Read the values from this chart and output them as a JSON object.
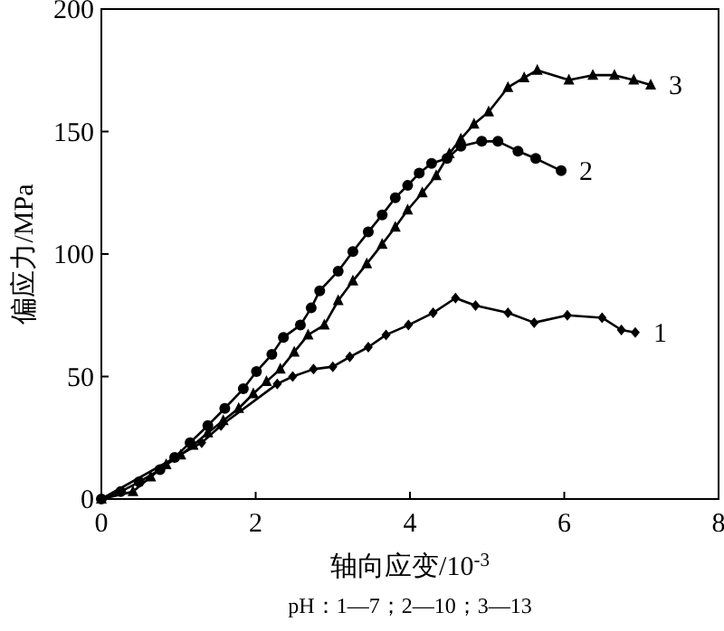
{
  "chart_data": {
    "type": "line",
    "xlabel": "轴向应变/10$^{-3}$",
    "ylabel": "偏应力/MPa",
    "annotations": [
      "pH：1—7；2—10；3—13"
    ],
    "xlim": [
      0,
      8
    ],
    "xticks": [
      0,
      2,
      4,
      6,
      8
    ],
    "ylim": [
      0,
      200
    ],
    "yticks": [
      0,
      50,
      100,
      150,
      200
    ],
    "grid": false,
    "legend": false,
    "line_style": "solid",
    "series": [
      {
        "name": "1",
        "color": "#000000",
        "marker": "diamond",
        "x": [
          0,
          1.3,
          1.55,
          2.28,
          2.48,
          2.75,
          3.0,
          3.22,
          3.46,
          3.69,
          3.98,
          4.3,
          4.59,
          4.85,
          5.27,
          5.61,
          6.04,
          6.49,
          6.74,
          6.92
        ],
        "values": [
          0,
          23,
          30,
          47,
          50,
          53,
          54,
          58,
          62,
          67,
          71,
          76,
          82,
          79,
          76,
          72,
          75,
          74,
          69,
          68
        ]
      },
      {
        "name": "2",
        "color": "#000000",
        "marker": "circle",
        "x": [
          0,
          0.25,
          0.49,
          0.76,
          0.95,
          1.15,
          1.38,
          1.6,
          1.84,
          2.01,
          2.21,
          2.36,
          2.58,
          2.72,
          2.83,
          3.07,
          3.26,
          3.46,
          3.64,
          3.81,
          3.97,
          4.12,
          4.28,
          4.48,
          4.66,
          4.93,
          5.14,
          5.4,
          5.63,
          5.96
        ],
        "values": [
          0,
          3,
          7,
          12,
          17,
          23,
          30,
          37,
          45,
          52,
          59,
          66,
          71,
          78,
          85,
          93,
          101,
          109,
          116,
          123,
          128,
          133,
          137,
          139,
          144,
          146,
          146,
          142,
          139,
          134
        ]
      },
      {
        "name": "3",
        "color": "#000000",
        "marker": "triangle",
        "x": [
          0,
          0.41,
          0.64,
          0.84,
          1.03,
          1.19,
          1.38,
          1.58,
          1.78,
          1.97,
          2.14,
          2.32,
          2.5,
          2.68,
          2.89,
          3.07,
          3.26,
          3.44,
          3.64,
          3.81,
          3.97,
          4.16,
          4.34,
          4.51,
          4.66,
          4.83,
          5.02,
          5.27,
          5.48,
          5.65,
          6.06,
          6.37,
          6.65,
          6.9,
          7.12
        ],
        "values": [
          0,
          3,
          9,
          14,
          18,
          22,
          27,
          32,
          37,
          43,
          48,
          53,
          60,
          67,
          71,
          81,
          89,
          96,
          104,
          111,
          118,
          125,
          132,
          141,
          147,
          153,
          158,
          168,
          172,
          175,
          171,
          173,
          173,
          171,
          169
        ]
      }
    ]
  }
}
